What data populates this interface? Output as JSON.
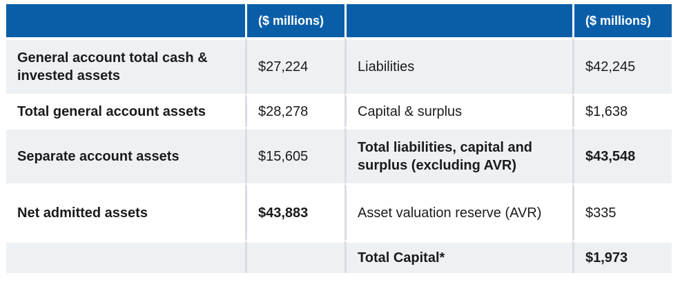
{
  "headers": [
    "",
    "($ millions)",
    "",
    "($ millions)"
  ],
  "rows": [
    {
      "label_left": "General account total cash & invested assets",
      "value_left": "$27,224",
      "label_right": "Liabilities",
      "value_right": "$42,245"
    },
    {
      "label_left": "Total general account assets",
      "value_left": "$28,278",
      "label_right": "Capital & surplus",
      "value_right": "$1,638"
    },
    {
      "label_left": "Separate account assets",
      "value_left": "$15,605",
      "label_right": "Total liabilities, capital and surplus (excluding AVR)",
      "value_right": "$43,548"
    },
    {
      "label_left": "Net admitted assets",
      "value_left": "$43,883",
      "label_right": "Asset valuation reserve (AVR)",
      "value_right": "$335"
    },
    {
      "label_left": "",
      "value_left": "",
      "label_right": "Total Capital*",
      "value_right": "$1,973"
    }
  ]
}
